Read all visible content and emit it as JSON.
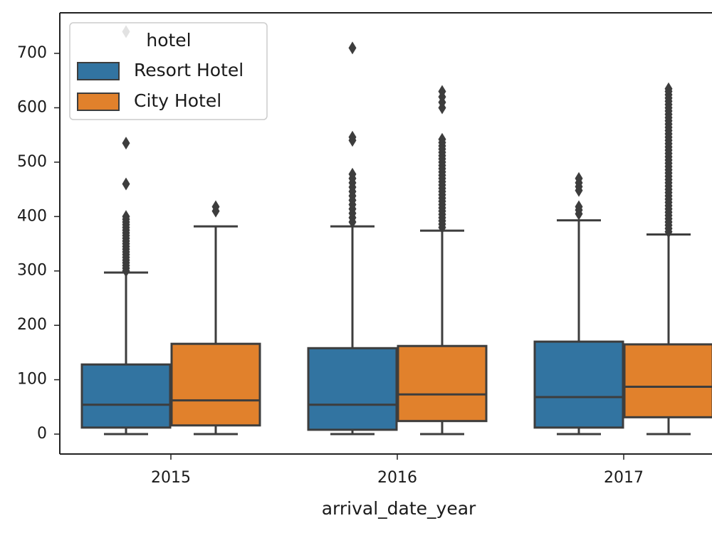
{
  "chart_data": {
    "type": "box",
    "x_label": "arrival_date_year",
    "categories": [
      "2015",
      "2016",
      "2017"
    ],
    "ylim": [
      -36.6,
      774.6
    ],
    "yticks": [
      0,
      100,
      200,
      300,
      400,
      500,
      600,
      700
    ],
    "legend_title": "hotel",
    "legend_position": "upper left",
    "series": [
      {
        "name": "Resort Hotel",
        "color": "#3274a1",
        "boxes": [
          {
            "whislo": 0,
            "q1": 12,
            "med": 54,
            "q3": 128,
            "whishi": 297,
            "fliers": [
              300,
              305,
              310,
              315,
              320,
              325,
              330,
              335,
              340,
              345,
              350,
              355,
              360,
              365,
              370,
              375,
              380,
              385,
              390,
              395,
              400,
              460,
              535,
              740
            ]
          },
          {
            "whislo": 0,
            "q1": 8,
            "med": 54,
            "q3": 158,
            "whishi": 382,
            "fliers": [
              390,
              398,
              406,
              414,
              422,
              430,
              438,
              446,
              454,
              462,
              470,
              478,
              540,
              546,
              710
            ]
          },
          {
            "whislo": 0,
            "q1": 12,
            "med": 68,
            "q3": 170,
            "whishi": 393,
            "fliers": [
              405,
              412,
              418,
              448,
              455,
              462,
              470
            ]
          }
        ]
      },
      {
        "name": "City Hotel",
        "color": "#e1812c",
        "boxes": [
          {
            "whislo": 0,
            "q1": 16,
            "med": 62,
            "q3": 166,
            "whishi": 382,
            "fliers": [
              410,
              418
            ]
          },
          {
            "whislo": 0,
            "q1": 24,
            "med": 73,
            "q3": 162,
            "whishi": 374,
            "fliers": [
              380,
              386,
              392,
              398,
              404,
              410,
              416,
              422,
              428,
              434,
              440,
              446,
              452,
              458,
              464,
              470,
              476,
              482,
              488,
              494,
              500,
              506,
              512,
              518,
              524,
              530,
              536,
              542,
              600,
              610,
              620,
              630
            ]
          },
          {
            "whislo": 0,
            "q1": 31,
            "med": 87,
            "q3": 165,
            "whishi": 367,
            "fliers": [
              372,
              378,
              384,
              390,
              396,
              402,
              408,
              414,
              420,
              426,
              432,
              438,
              444,
              450,
              456,
              462,
              468,
              474,
              480,
              486,
              492,
              498,
              504,
              510,
              516,
              522,
              528,
              534,
              540,
              546,
              552,
              558,
              564,
              570,
              576,
              582,
              588,
              594,
              600,
              606,
              612,
              618,
              624,
              630,
              635
            ]
          }
        ]
      }
    ]
  }
}
